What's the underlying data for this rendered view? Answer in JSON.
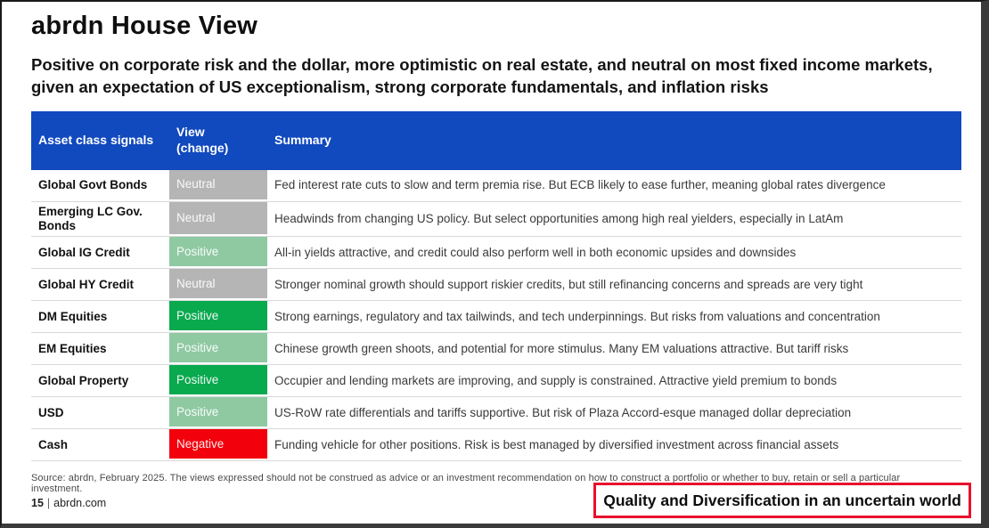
{
  "page": {
    "title": "abrdn House View",
    "subtitle": "Positive on corporate risk and the dollar, more optimistic on real estate, and neutral on most fixed income markets, given an expectation of US exceptionalism, strong corporate fundamentals, and inflation risks",
    "source_note": "Source: abrdn, February 2025. The views expressed should not be construed as advice or an investment recommendation on how to construct a portfolio or whether to buy, retain or sell a particular investment.",
    "page_number": "15",
    "site": "abrdn.com",
    "tagline": "Quality and Diversification in an uncertain world"
  },
  "table": {
    "headers": [
      "Asset class signals",
      "View (change)",
      "Summary"
    ],
    "rows": [
      {
        "asset": "Global Govt Bonds",
        "view": "Neutral",
        "level": "neutral",
        "summary": "Fed interest rate cuts to slow and term premia rise. But ECB likely to ease further, meaning global rates divergence"
      },
      {
        "asset": "Emerging LC Gov. Bonds",
        "view": "Neutral",
        "level": "neutral",
        "summary": "Headwinds from changing US policy. But select opportunities among high real yielders, especially in LatAm"
      },
      {
        "asset": "Global IG Credit",
        "view": "Positive",
        "level": "positive_light",
        "summary": "All-in yields attractive, and credit could also perform well in both economic upsides and downsides"
      },
      {
        "asset": "Global HY Credit",
        "view": "Neutral",
        "level": "neutral",
        "summary": "Stronger nominal growth should support riskier credits, but still refinancing concerns and spreads are very tight"
      },
      {
        "asset": "DM Equities",
        "view": "Positive",
        "level": "positive_strong",
        "summary": "Strong earnings, regulatory and tax tailwinds, and tech underpinnings. But risks from valuations and concentration"
      },
      {
        "asset": "EM Equities",
        "view": "Positive",
        "level": "positive_light",
        "summary": "Chinese growth green shoots, and potential for more stimulus. Many EM valuations attractive. But tariff risks"
      },
      {
        "asset": "Global Property",
        "view": "Positive",
        "level": "positive_strong",
        "summary": "Occupier and lending markets are improving, and supply is constrained. Attractive yield premium to bonds"
      },
      {
        "asset": "USD",
        "view": "Positive",
        "level": "positive_light",
        "summary": "US-RoW rate differentials and tariffs supportive. But risk of Plaza Accord-esque managed dollar depreciation"
      },
      {
        "asset": "Cash",
        "view": "Negative",
        "level": "negative",
        "summary": "Funding vehicle for other positions. Risk is best managed by diversified investment across financial assets"
      }
    ]
  },
  "colors": {
    "header_bg": "#1149BE",
    "header_text": "#FFFFFF",
    "view_levels": {
      "neutral": "#B5B5B5",
      "positive_light": "#8FC9A2",
      "positive_strong": "#09A94E",
      "negative": "#F2000C"
    },
    "tagline_border": "#E8112D"
  }
}
